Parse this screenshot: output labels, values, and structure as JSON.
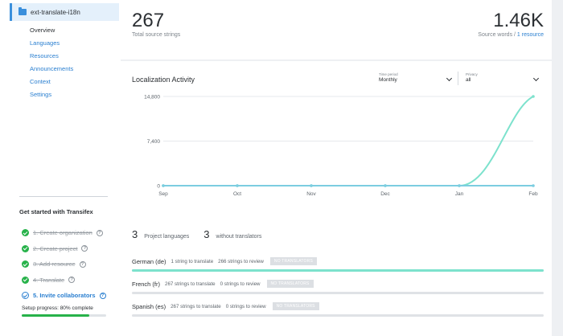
{
  "sidebar": {
    "project_name": "ext-translate-i18n",
    "nav": [
      {
        "label": "Overview",
        "active": true
      },
      {
        "label": "Languages"
      },
      {
        "label": "Resources"
      },
      {
        "label": "Announcements"
      },
      {
        "label": "Context"
      },
      {
        "label": "Settings"
      }
    ],
    "get_started": {
      "title": "Get started with Transifex",
      "steps": [
        {
          "label": "1. Create organization",
          "done": true
        },
        {
          "label": "2. Create project",
          "done": true
        },
        {
          "label": "3. Add resource",
          "done": true
        },
        {
          "label": "4. Translate",
          "done": true
        },
        {
          "label": "5. Invite collaborators",
          "done": false
        }
      ],
      "help_glyph": "?",
      "progress_label": "Setup progress: 80% complete",
      "progress": 0.8
    }
  },
  "stats": {
    "source_strings": "267",
    "source_strings_label": "Total source strings",
    "source_words": "1.46K",
    "source_words_label": "Source words / ",
    "resource_link": "1 resource"
  },
  "activity": {
    "title": "Localization Activity",
    "time_period_label": "Time period",
    "time_period_value": "Monthly",
    "privacy_label": "Privacy",
    "privacy_value": "all"
  },
  "chart_data": {
    "type": "line",
    "categories": [
      "Sep",
      "Oct",
      "Nov",
      "Dec",
      "Jan",
      "Feb"
    ],
    "yticks": [
      "0",
      "7,400",
      "14,800"
    ],
    "ylim": [
      0,
      14800
    ],
    "series": [
      {
        "values": [
          0,
          0,
          0,
          0,
          0,
          14800
        ],
        "color": "#7de2cd",
        "curve": true
      },
      {
        "values": [
          0,
          0,
          0,
          0,
          0,
          0
        ],
        "color": "#7ccde0",
        "curve": false
      }
    ]
  },
  "languages_summary": {
    "count": "3",
    "count_label": "Project languages",
    "without": "3",
    "without_label": "without translators"
  },
  "languages": [
    {
      "name": "German (de)",
      "to_translate": "1 string to translate",
      "to_review": "266 strings to review",
      "badge": "NO TRANSLATORS",
      "progress": 1.0
    },
    {
      "name": "French (fr)",
      "to_translate": "267 strings to translate",
      "to_review": "0 strings to review",
      "badge": "NO TRANSLATORS",
      "progress": 0
    },
    {
      "name": "Spanish (es)",
      "to_translate": "267 strings to translate",
      "to_review": "0 strings to review",
      "badge": "NO TRANSLATORS",
      "progress": 0
    }
  ]
}
